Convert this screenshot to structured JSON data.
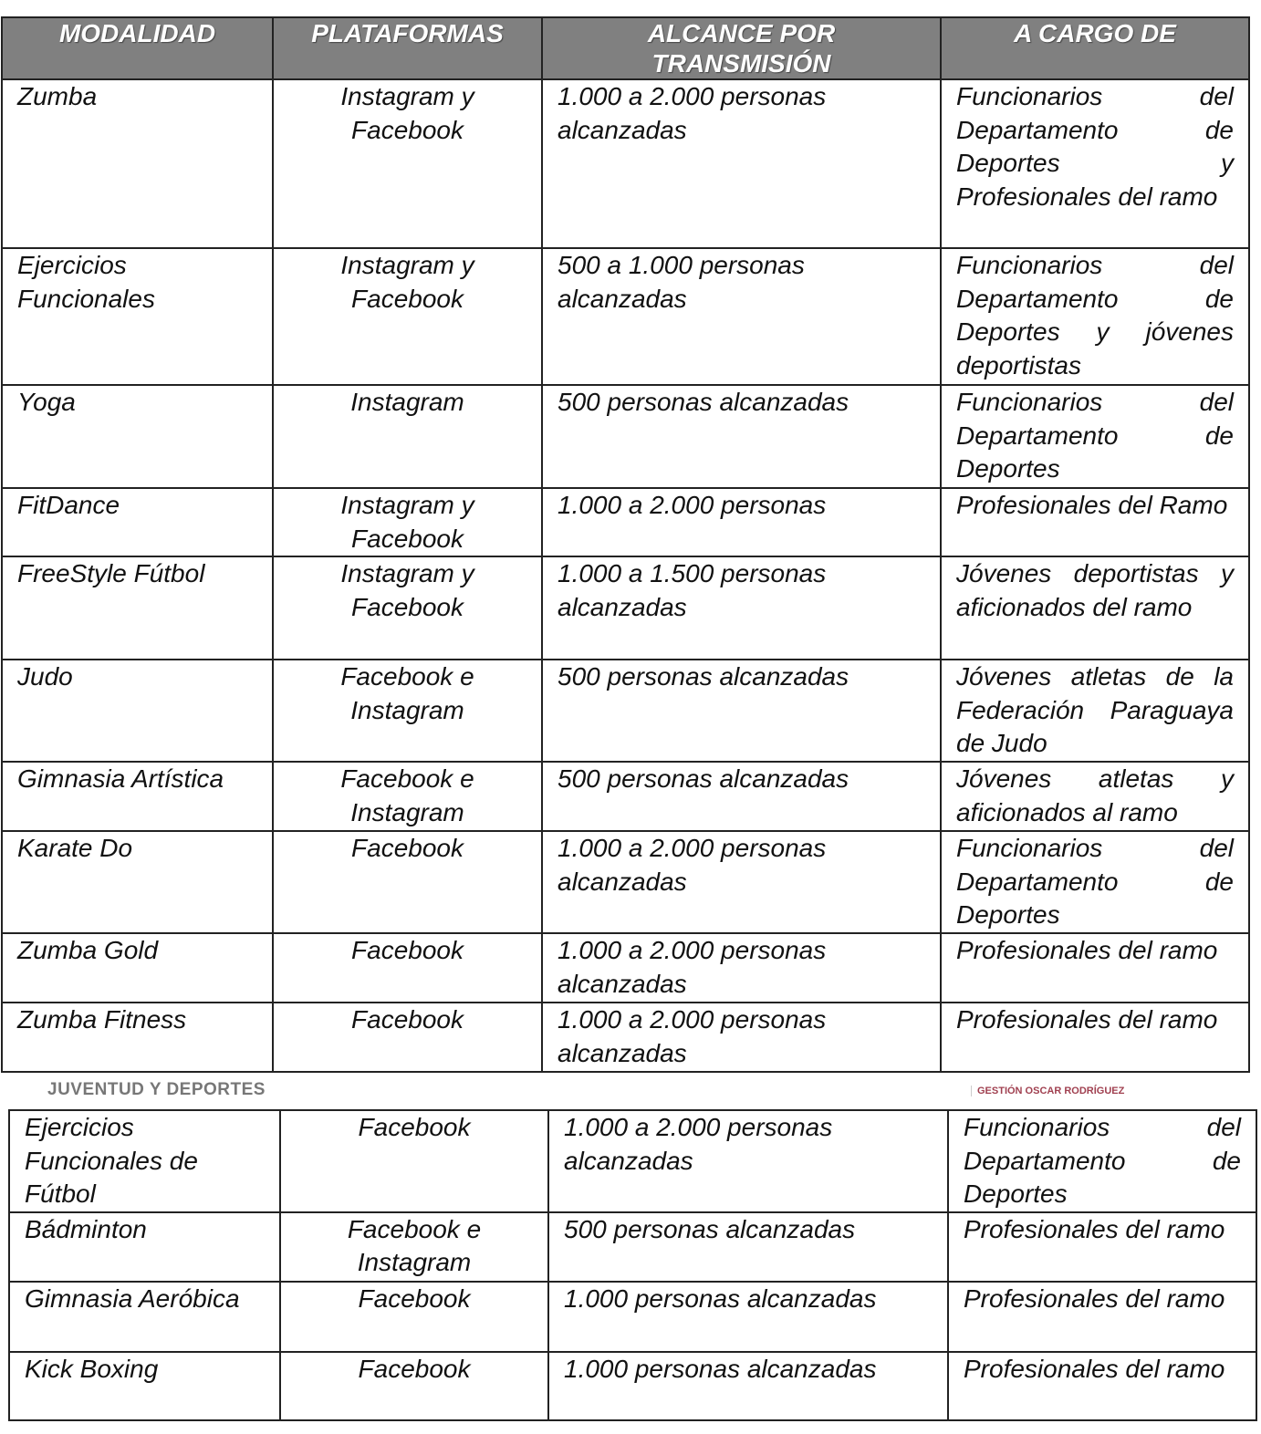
{
  "headers": [
    "MODALIDAD",
    "PLATAFORMAS",
    "ALCANCE POR TRANSMISIÓN",
    "A CARGO DE"
  ],
  "table1_rows": [
    [
      "Zumba",
      "Instagram y Facebook",
      "1.000 a 2.000 personas alcanzadas",
      "Funcionarios del Departamento de Deportes y Profesionales del ramo"
    ],
    [
      "Ejercicios Funcionales",
      "Instagram y Facebook",
      "500 a 1.000 personas alcanzadas",
      "Funcionarios del Departamento de Deportes y jóvenes deportistas"
    ],
    [
      "Yoga",
      "Instagram",
      "500 personas alcanzadas",
      "Funcionarios del Departamento de Deportes"
    ],
    [
      "FitDance",
      "Instagram y Facebook",
      "1.000 a 2.000 personas",
      "Profesionales del Ramo"
    ],
    [
      "FreeStyle Fútbol",
      "Instagram y Facebook",
      "1.000 a 1.500 personas alcanzadas",
      "Jóvenes deportistas y aficionados del ramo"
    ],
    [
      "Judo",
      "Facebook e Instagram",
      "500 personas alcanzadas",
      "Jóvenes atletas de la Federación Paraguaya de Judo"
    ],
    [
      "Gimnasia Artística",
      "Facebook e Instagram",
      "500 personas alcanzadas",
      "Jóvenes atletas y aficionados al ramo"
    ],
    [
      "Karate Do",
      "Facebook",
      "1.000 a 2.000 personas alcanzadas",
      "Funcionarios del Departamento de Deportes"
    ],
    [
      "Zumba Gold",
      "Facebook",
      "1.000 a 2.000 personas alcanzadas",
      "Profesionales del ramo"
    ],
    [
      "Zumba Fitness",
      "Facebook",
      "1.000 a 2.000 personas alcanzadas",
      "Profesionales del ramo"
    ]
  ],
  "footer": {
    "department": "JUVENTUD Y DEPORTES",
    "management": "GESTIÓN OSCAR RODRÍGUEZ"
  },
  "table2_rows": [
    [
      "Ejercicios Funcionales de Fútbol",
      "Facebook",
      "1.000 a 2.000 personas alcanzadas",
      "Funcionarios del Departamento de Deportes"
    ],
    [
      "Bádminton",
      "Facebook e Instagram",
      "500 personas alcanzadas",
      "Profesionales del ramo"
    ],
    [
      "Gimnasia Aeróbica",
      "Facebook",
      "1.000 personas alcanzadas",
      "Profesionales del ramo"
    ],
    [
      "Kick Boxing",
      "Facebook",
      "1.000 personas alcanzadas",
      "Profesionales del ramo"
    ]
  ]
}
